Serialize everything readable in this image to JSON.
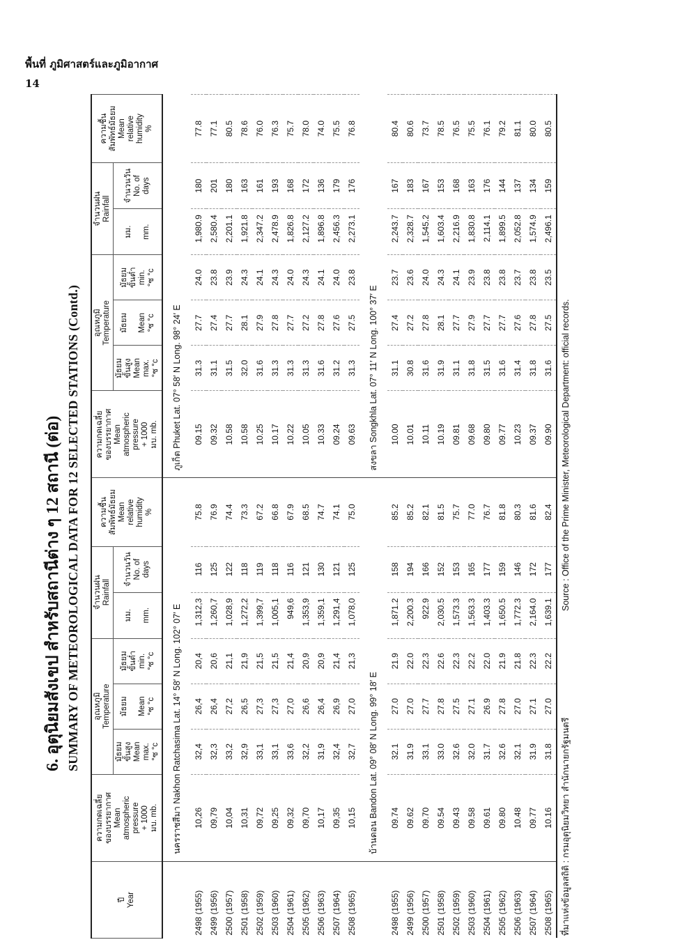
{
  "page_header": {
    "section": "พื้นที่ ภูมิศาสตร์และภูมิอากาศ",
    "page_number": "14"
  },
  "title": {
    "thai": "6.  อุตุนิยมสังเขป  สำหรับสถานีต่าง ๆ 12 สถานี   (ต่อ)",
    "english": "SUMMARY OF METEOROLOGICAL DATA FOR 12 SELECTED STATIONS  (Contd.)"
  },
  "headers": {
    "year": "ปี\nYear",
    "pressure": "ความกดเฉลี่ย\nของบรรยากาศ\nMean\natmospheric\npressure\n+ 1000\nมบ. mb.",
    "temperature": "อุณหภูมิ\nTemperature",
    "max": "มัธยม\nขั้นสูง\nMean\nmax.\n°ซ °c",
    "mean": "มัธยม\n\nMean\n°ซ °c",
    "min": "มัธยม\nขั้นต่ำ\nmin.\n°ซ °c",
    "rainfall": "จำนวนฝน\nRainfall",
    "mm": "มม.\n\nmm.",
    "days": "จำนวนวัน\nNo. of\ndays",
    "humidity": "ความชื้น\nสัมพัทธ์มัธยม\nMean\nrelative\nhumidity\n%"
  },
  "years": [
    "2498  (1955)",
    "2499  (1956)",
    "2500  (1957)",
    "2501  (1958)",
    "2502  (1959)",
    "2503  (1960)",
    "2504  (1961)",
    "2505  (1962)",
    "2506  (1963)",
    "2507  (1964)",
    "2508  (1965)"
  ],
  "blocks": [
    {
      "left": {
        "label": "นครราชสีมา  Nakhon Ratchasima   Lat. 14° 58′ N   Long. 102° 07′ E",
        "rows": [
          [
            "10,26",
            "32,4",
            "26,4",
            "20,4",
            "1,312,3",
            "116",
            "75.8"
          ],
          [
            "09,79",
            "32,3",
            "26,4",
            "20,6",
            "1,260,7",
            "125",
            "76.9"
          ],
          [
            "10,04",
            "33,2",
            "27,2",
            "21,1",
            "1,028,9",
            "122",
            "74.4"
          ],
          [
            "10,31",
            "32,9",
            "26,5",
            "21,9",
            "1,272,2",
            "118",
            "73.3"
          ],
          [
            "09,72",
            "33,1",
            "27,3",
            "21,5",
            "1,399,7",
            "119",
            "67.2"
          ],
          [
            "09,25",
            "33,1",
            "27,3",
            "21,5",
            "1,005,1",
            "118",
            "66.8"
          ],
          [
            "09,32",
            "33,6",
            "27,0",
            "21,4",
            "949,6",
            "116",
            "67.9"
          ],
          [
            "09,70",
            "32,2",
            "26,6",
            "20,9",
            "1,353,9",
            "121",
            "68.5"
          ],
          [
            "10,17",
            "31,9",
            "26,4",
            "20,9",
            "1,359,1",
            "130",
            "74.7"
          ],
          [
            "09,35",
            "32,4",
            "26,9",
            "21,4",
            "1,291,4",
            "121",
            "74.1"
          ],
          [
            "10,15",
            "32,7",
            "27,0",
            "21,3",
            "1,078,0",
            "125",
            "75.0"
          ]
        ]
      },
      "right": {
        "label": "ภูเก็ต  Phuket   Lat. 07° 58′ N   Long. 98° 24′ E",
        "rows": [
          [
            "09.15",
            "31.3",
            "27.7",
            "24.0",
            "1,980.9",
            "180",
            "77.8"
          ],
          [
            "09.32",
            "31.1",
            "27.4",
            "23.8",
            "2,580.4",
            "201",
            "77.1"
          ],
          [
            "10.58",
            "31.5",
            "27.7",
            "23.9",
            "2,201.1",
            "180",
            "80.5"
          ],
          [
            "10.58",
            "32.0",
            "28.1",
            "24.3",
            "1,921.8",
            "163",
            "78.6"
          ],
          [
            "10.25",
            "31.6",
            "27.9",
            "24.1",
            "2,347.2",
            "161",
            "76.0"
          ],
          [
            "10.17",
            "31.3",
            "27.8",
            "24.3",
            "2,478.9",
            "193",
            "76.3"
          ],
          [
            "10.22",
            "31.3",
            "27.7",
            "24.0",
            "1,826.8",
            "168",
            "75.7"
          ],
          [
            "10.05",
            "31.3",
            "27.2",
            "24.3",
            "2,127.2",
            "172",
            "78.0"
          ],
          [
            "10.33",
            "31.6",
            "27.8",
            "24.1",
            "1,896.8",
            "136",
            "74.0"
          ],
          [
            "09.24",
            "31.2",
            "27.6",
            "24.0",
            "2,456.3",
            "179",
            "75.5"
          ],
          [
            "09.63",
            "31.3",
            "27.5",
            "23.8",
            "2,273.1",
            "176",
            "76.8"
          ]
        ]
      }
    },
    {
      "left": {
        "label": "บ้านดอน  Bandon   Lat. 09° 08′ N   Long. 99° 18′ E",
        "rows": [
          [
            "09.74",
            "32.1",
            "27.0",
            "21.9",
            "1,871.2",
            "158",
            "85.2"
          ],
          [
            "09.62",
            "31.9",
            "27.0",
            "22.0",
            "2,200.3",
            "194",
            "85.2"
          ],
          [
            "09.70",
            "33.1",
            "27.7",
            "22.3",
            "922.9",
            "166",
            "82.1"
          ],
          [
            "09.54",
            "33.0",
            "27.8",
            "22.6",
            "2,030.5",
            "152",
            "81.5"
          ],
          [
            "09.43",
            "32.6",
            "27.5",
            "22.3",
            "1,573.3",
            "153",
            "75.7"
          ],
          [
            "09.58",
            "32.0",
            "27.1",
            "22.2",
            "1,563.3",
            "165",
            "77.0"
          ],
          [
            "09.61",
            "31.7",
            "26.9",
            "22.0",
            "1,403.3",
            "177",
            "76.7"
          ],
          [
            "09.80",
            "32.6",
            "27.8",
            "21.9",
            "1,650.5",
            "159",
            "81.8"
          ],
          [
            "10.48",
            "32.1",
            "27.0",
            "21.8",
            "1,772.3",
            "146",
            "80.3"
          ],
          [
            "09.77",
            "31.9",
            "27.1",
            "22.3",
            "2,164.0",
            "172",
            "81.6"
          ],
          [
            "10.16",
            "31.8",
            "27.0",
            "22.2",
            "1,639.1",
            "177",
            "82.4"
          ]
        ]
      },
      "right": {
        "label": "สงขลา  Songkhla   Lat. 07° 11′ N   Long. 100° 37′ E",
        "rows": [
          [
            "10.00",
            "31.1",
            "27.4",
            "23.7",
            "2,243.7",
            "167",
            "80.4"
          ],
          [
            "10.01",
            "30.8",
            "27.2",
            "23.6",
            "2,328.7",
            "183",
            "80.6"
          ],
          [
            "10.11",
            "31.6",
            "27.8",
            "24.0",
            "1,545.2",
            "167",
            "73.7"
          ],
          [
            "10.19",
            "31.9",
            "28.1",
            "24.3",
            "1,603.4",
            "153",
            "78.5"
          ],
          [
            "09.81",
            "31.1",
            "27.7",
            "24.1",
            "2,216.9",
            "168",
            "76.5"
          ],
          [
            "09.68",
            "31.8",
            "27.9",
            "23.9",
            "1,830.8",
            "163",
            "75.5"
          ],
          [
            "09.80",
            "31.5",
            "27.7",
            "23.8",
            "2,114.1",
            "176",
            "76.1"
          ],
          [
            "09.77",
            "31.6",
            "27.7",
            "23.8",
            "1,899.5",
            "144",
            "79.2"
          ],
          [
            "10.23",
            "31.4",
            "27.6",
            "23.7",
            "2,052.8",
            "137",
            "81.1"
          ],
          [
            "09.37",
            "31.8",
            "27.8",
            "23.8",
            "1,574.9",
            "134",
            "80.0"
          ],
          [
            "09.90",
            "31.6",
            "27.5",
            "23.5",
            "2,496.1",
            "159",
            "80.5"
          ]
        ]
      }
    }
  ],
  "source": {
    "thai": "ที่มาแห่งข้อมูลสถิติ : กรมอุตุนิยมวิทยา สำนักนายกรัฐมนตรี",
    "english": "Source : Office of the Prime Minister, Meteorological Department:  official records."
  }
}
